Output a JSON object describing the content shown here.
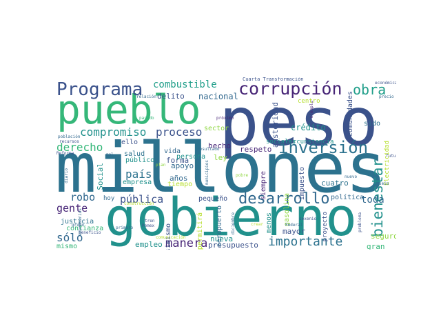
{
  "word_cloud": {
    "words": [
      {
        "text": "peso",
        "color": "#3b528b"
      },
      {
        "text": "millones",
        "color": "#2c728e"
      },
      {
        "text": "gobierno",
        "color": "#21918c"
      },
      {
        "text": "pueblo",
        "color": "#35b779"
      },
      {
        "text": "Programa",
        "color": "#3b528b"
      },
      {
        "text": "corrupción",
        "color": "#482677"
      },
      {
        "text": "inversión",
        "color": "#2c728e"
      },
      {
        "text": "obra",
        "color": "#1f9e89"
      },
      {
        "text": "desarrollo",
        "color": "#31688e"
      },
      {
        "text": "bienestar",
        "color": "#21918c"
      },
      {
        "text": "importante",
        "color": "#2c728e"
      },
      {
        "text": "compromiso",
        "color": "#21918c"
      },
      {
        "text": "combustible",
        "color": "#1f9e89"
      },
      {
        "text": "derecho",
        "color": "#35b779"
      },
      {
        "text": "proceso",
        "color": "#3b528b"
      },
      {
        "text": "manera",
        "color": "#482677"
      },
      {
        "text": "país",
        "color": "#2c728e"
      },
      {
        "text": "robo",
        "color": "#31688e"
      },
      {
        "text": "pública",
        "color": "#3b528b"
      },
      {
        "text": "gente",
        "color": "#482677"
      },
      {
        "text": "sólo",
        "color": "#31688e"
      },
      {
        "text": "toda",
        "color": "#31688e"
      },
      {
        "text": "crédito",
        "color": "#21918c"
      },
      {
        "text": "nacional",
        "color": "#31688e"
      },
      {
        "text": "delito",
        "color": "#3b528b"
      },
      {
        "text": "respeto",
        "color": "#482677"
      },
      {
        "text": "hecho",
        "color": "#482677"
      },
      {
        "text": "forma",
        "color": "#3b528b"
      },
      {
        "text": "vida",
        "color": "#31688e"
      },
      {
        "text": "ello",
        "color": "#3b528b"
      },
      {
        "text": "apoyo",
        "color": "#31688e"
      },
      {
        "text": "años",
        "color": "#31688e"
      },
      {
        "text": "salud",
        "color": "#2c728e"
      },
      {
        "text": "público",
        "color": "#21918c"
      },
      {
        "text": "empresa",
        "color": "#21918c"
      },
      {
        "text": "persona",
        "color": "#21918c"
      },
      {
        "text": "tiempo",
        "color": "#b5de2b"
      },
      {
        "text": "ley",
        "color": "#90d743"
      },
      {
        "text": "sector",
        "color": "#90d743"
      },
      {
        "text": "austeridad",
        "color": "#3b528b"
      },
      {
        "text": "comunidades",
        "color": "#3b528b"
      },
      {
        "text": "sido",
        "color": "#2c728e"
      },
      {
        "text": "siempre",
        "color": "#482677"
      },
      {
        "text": "impuesto",
        "color": "#3b528b"
      },
      {
        "text": "cuatro",
        "color": "#2c728e"
      },
      {
        "text": "gasolina",
        "color": "#90d743"
      },
      {
        "text": "sociales",
        "color": "#21918c"
      },
      {
        "text": "circunstancia",
        "color": "#21918c"
      },
      {
        "text": "Electricidad",
        "color": "#b5de2b"
      },
      {
        "text": "seguro",
        "color": "#90d743"
      },
      {
        "text": "gran",
        "color": "#35b779"
      },
      {
        "text": "política",
        "color": "#31688e"
      },
      {
        "text": "proyecto",
        "color": "#3b528b"
      },
      {
        "text": "mayor",
        "color": "#3b528b"
      },
      {
        "text": "nueva",
        "color": "#21918c"
      },
      {
        "text": "presupuesto",
        "color": "#3b528b"
      },
      {
        "text": "empleo",
        "color": "#21918c"
      },
      {
        "text": "Asimismo",
        "color": "#3b528b"
      },
      {
        "text": "aeropuerto",
        "color": "#31688e"
      },
      {
        "text": "permitirá",
        "color": "#b5de2b"
      },
      {
        "text": "menos",
        "color": "#21918c"
      },
      {
        "text": "Social",
        "color": "#21918c"
      },
      {
        "text": "justicia",
        "color": "#2c728e"
      },
      {
        "text": "confianza",
        "color": "#35b779"
      },
      {
        "text": "mismo",
        "color": "#35b779"
      },
      {
        "text": "hoy",
        "color": "#31688e"
      },
      {
        "text": "pequeño",
        "color": "#3b528b"
      },
      {
        "text": "Cuarta Transformación",
        "color": "#3b528b"
      },
      {
        "text": "económica",
        "color": "#3b528b"
      },
      {
        "text": "relación",
        "color": "#31688e"
      },
      {
        "text": "precio",
        "color": "#31688e"
      },
      {
        "text": "pasado",
        "color": "#35b779"
      },
      {
        "text": "ejemplo",
        "color": "#482677"
      },
      {
        "text": "centro",
        "color": "#b5de2b"
      },
      {
        "text": "población",
        "color": "#31688e"
      },
      {
        "text": "recursos",
        "color": "#3b528b"
      },
      {
        "text": "Reforma",
        "color": "#3b528b"
      },
      {
        "text": "mal",
        "color": "#31688e"
      },
      {
        "text": "plan",
        "color": "#90d743"
      },
      {
        "text": "diario",
        "color": "#31688e"
      },
      {
        "text": "municipios",
        "color": "#31688e"
      },
      {
        "text": "resultado",
        "color": "#31688e"
      },
      {
        "text": "próximo",
        "color": "#482677"
      },
      {
        "text": "construcción",
        "color": "#b5de2b"
      },
      {
        "text": "tren",
        "color": "#3b528b"
      },
      {
        "text": "Pemex",
        "color": "#3b528b"
      },
      {
        "text": "primero",
        "color": "#31688e"
      },
      {
        "text": "beneficio",
        "color": "#3b528b"
      },
      {
        "text": "empresarios",
        "color": "#31688e"
      },
      {
        "text": "diciembre",
        "color": "#31688e"
      },
      {
        "text": "comunicación",
        "color": "#b5de2b"
      },
      {
        "text": "pobre",
        "color": "#90d743"
      },
      {
        "text": "sexenio",
        "color": "#3b528b"
      },
      {
        "text": "nuevo",
        "color": "#31688e"
      },
      {
        "text": "Federal",
        "color": "#31688e"
      },
      {
        "text": "crear",
        "color": "#b5de2b"
      },
      {
        "text": "problema",
        "color": "#3b528b"
      },
      {
        "text": "seis",
        "color": "#31688e"
      },
      {
        "text": "futuro",
        "color": "#3b528b"
      },
      {
        "text": "grupo",
        "color": "#31688e"
      }
    ]
  }
}
